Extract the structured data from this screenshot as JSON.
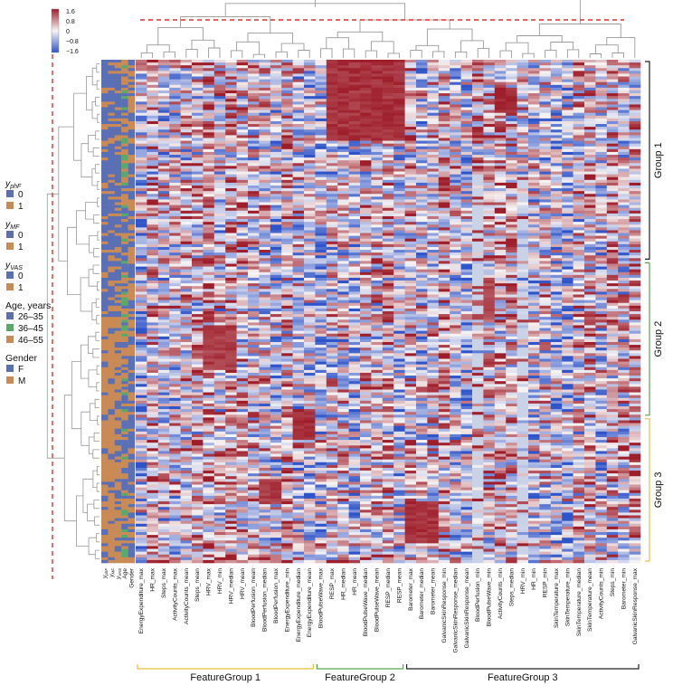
{
  "chart_data": {
    "type": "heatmap",
    "title": "",
    "colorbar": {
      "ticks": [
        "1.6",
        "0.8",
        "0",
        "−0.8",
        "−1.6"
      ],
      "range": [
        -1.6,
        1.6
      ],
      "colors": {
        "low": "#2f54c9",
        "mid": "#f7f4f4",
        "high": "#9e1d2a",
        "gap": "#c9d2e6"
      }
    },
    "annotation_columns": [
      "y_phF",
      "y_MF",
      "y_VAS",
      "Age",
      "Gender"
    ],
    "columns": [
      "EnergyExpenditure_max",
      "HR_max",
      "Steps_max",
      "ActivityCounts_max",
      "ActivityCounts_mean",
      "Steps_mean",
      "HRV_max",
      "HRV_min",
      "HRV_median",
      "HRV_mean",
      "BloodPerfusion_mean",
      "BloodPerfusion_median",
      "BloodPerfusion_max",
      "EnergyExpenditure_min",
      "EnergyExpenditure_median",
      "EnergyExpenditure_mean",
      "BloodPulseWave_max",
      "RESP_max",
      "HR_median",
      "HR_mean",
      "BloodPulseWave_median",
      "BloodPulseWave_mean",
      "RESP_median",
      "RESP_mean",
      "Barometer_max",
      "Barometer_median",
      "Barometer_mean",
      "GalvanicSkinResponse_min",
      "GalvanicSkinResponse_median",
      "GalvanicSkinResponse_mean",
      "BloodPerfusion_min",
      "BloodPulseWave_min",
      "ActivityCounts_min",
      "Steps_median",
      "HRV_min",
      "HR_min",
      "RESP_min",
      "SkinTemperature_max",
      "SkinTemperature_min",
      "SkinTemperature_median",
      "SkinTemperature_mean",
      "ActivityCounts_min",
      "Steps_min",
      "Barometer_min",
      "GalvanicSkinResponse_max"
    ],
    "feature_groups": [
      {
        "name": "FeatureGroup 1",
        "first_col": 0,
        "last_col": 15,
        "color": "#e8c040"
      },
      {
        "name": "FeatureGroup 2",
        "first_col": 16,
        "last_col": 23,
        "color": "#55a84a"
      },
      {
        "name": "FeatureGroup 3",
        "first_col": 24,
        "last_col": 44,
        "color": "#222222"
      }
    ],
    "row_groups": [
      {
        "name": "Group 1",
        "row_from": 0.0,
        "row_to": 0.4,
        "color": "#222222"
      },
      {
        "name": "Group 2",
        "row_from": 0.4,
        "row_to": 0.71,
        "color": "#55a84a"
      },
      {
        "name": "Group 3",
        "row_from": 0.71,
        "row_to": 1.0,
        "color": "#e8c040"
      }
    ],
    "n_rows": 180,
    "dendrograms": {
      "top": true,
      "left": true,
      "cut_line_color": "#e03030"
    }
  },
  "legend": {
    "sections": [
      {
        "title_main": "y",
        "title_sub": "phF",
        "items": [
          {
            "label": "0",
            "color": "#5b6fb5"
          },
          {
            "label": "1",
            "color": "#c98a55"
          }
        ]
      },
      {
        "title_main": "y",
        "title_sub": "MF",
        "items": [
          {
            "label": "0",
            "color": "#5b6fb5"
          },
          {
            "label": "1",
            "color": "#c98a55"
          }
        ]
      },
      {
        "title_main": "y",
        "title_sub": "VAS",
        "items": [
          {
            "label": "0",
            "color": "#5b6fb5"
          },
          {
            "label": "1",
            "color": "#c98a55"
          }
        ]
      },
      {
        "title_main": "Age, years",
        "title_sub": "",
        "items": [
          {
            "label": "26–35",
            "color": "#5b6fb5"
          },
          {
            "label": "36–45",
            "color": "#5aa86a"
          },
          {
            "label": "46–55",
            "color": "#c98a55"
          }
        ]
      },
      {
        "title_main": "Gender",
        "title_sub": "",
        "items": [
          {
            "label": "F",
            "color": "#5b6fb5"
          },
          {
            "label": "M",
            "color": "#c98a55"
          }
        ]
      }
    ]
  },
  "annotation_labels": [
    {
      "main": "y",
      "sub": "phF"
    },
    {
      "main": "y",
      "sub": "MF"
    },
    {
      "main": "y",
      "sub": "VAS"
    },
    {
      "main": "Age",
      "sub": ""
    },
    {
      "main": "Gender",
      "sub": ""
    }
  ]
}
